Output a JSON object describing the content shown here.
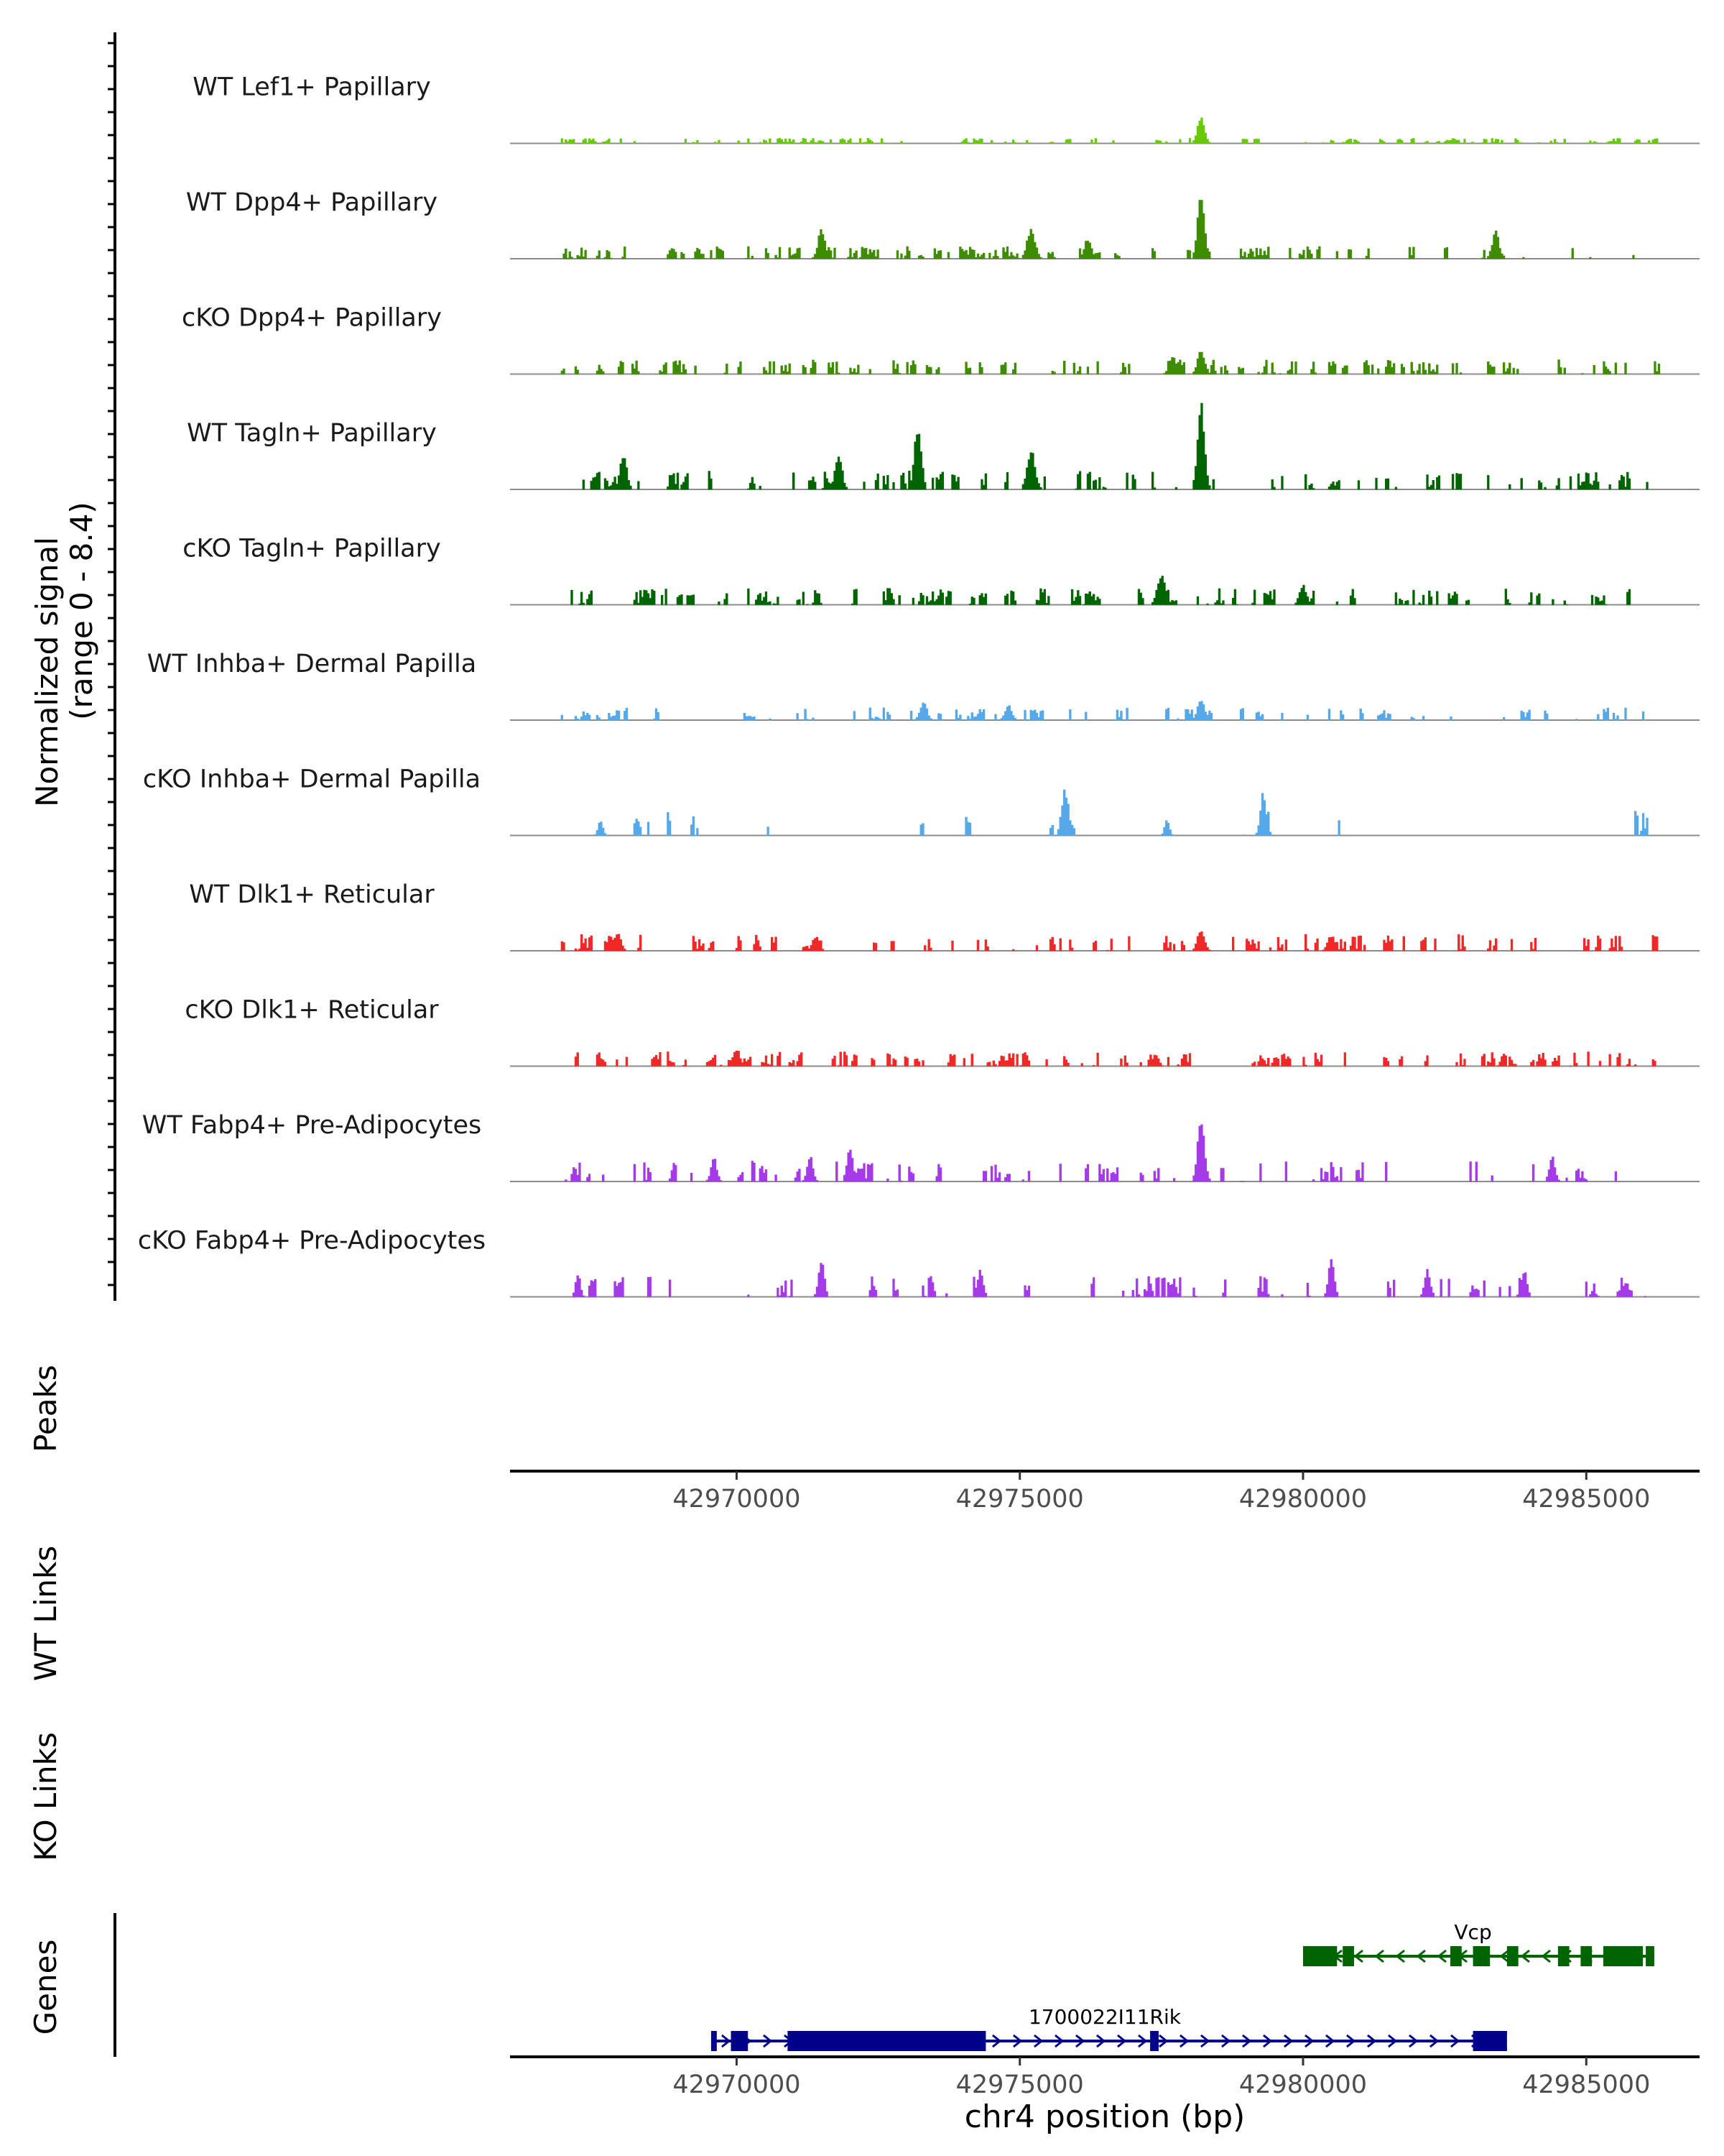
{
  "chart_data": {
    "type": "area",
    "subtype": "coverage-plot",
    "region": {
      "chrom": "chr4",
      "start": 42966000,
      "end": 42987000
    },
    "y_axis": {
      "label_line1": "Normalized signal",
      "label_line2": "(range 0 - 8.4)",
      "ylim": [
        0,
        8.4
      ]
    },
    "tracks": [
      {
        "name": "WT Lef1+ Papillary",
        "color": "#66CC00",
        "density": 0.9,
        "base": 0.25,
        "peaks": [
          [
            42978200,
            2.3,
            60
          ]
        ]
      },
      {
        "name": "WT Dpp4+ Papillary",
        "color": "#3E8C00",
        "density": 0.45,
        "base": 0.6,
        "peaks": [
          [
            42978200,
            5.5,
            60
          ],
          [
            42975200,
            2.5,
            70
          ],
          [
            42971500,
            2.4,
            60
          ],
          [
            42983400,
            2.2,
            60
          ],
          [
            42976200,
            1.6,
            60
          ]
        ]
      },
      {
        "name": "cKO Dpp4+ Papillary",
        "color": "#3E8C00",
        "density": 0.8,
        "base": 0.7,
        "peaks": [
          [
            42978200,
            2.0,
            60
          ],
          [
            42977700,
            1.4,
            60
          ]
        ]
      },
      {
        "name": "WT Tagln+ Papillary",
        "color": "#006400",
        "density": 0.5,
        "base": 0.9,
        "peaks": [
          [
            42978200,
            7.0,
            60
          ],
          [
            42973200,
            5.3,
            60
          ],
          [
            42975200,
            3.2,
            70
          ],
          [
            42971800,
            3.0,
            60
          ],
          [
            42968000,
            3.0,
            60
          ]
        ]
      },
      {
        "name": "cKO Tagln+ Papillary",
        "color": "#006400",
        "density": 0.55,
        "base": 0.8,
        "peaks": [
          [
            42977500,
            2.5,
            70
          ],
          [
            42980000,
            1.6,
            60
          ],
          [
            42968400,
            1.2,
            60
          ]
        ]
      },
      {
        "name": "WT Inhba+ Dermal Papilla",
        "color": "#56A8E8",
        "density": 0.5,
        "base": 0.6,
        "peaks": [
          [
            42978200,
            1.7,
            60
          ],
          [
            42973300,
            1.5,
            60
          ],
          [
            42974800,
            1.2,
            60
          ]
        ]
      },
      {
        "name": "cKO Inhba+ Dermal Papilla",
        "color": "#56A8E8",
        "density": 0.12,
        "base": 1.2,
        "peaks": [
          [
            42975800,
            3.8,
            60
          ],
          [
            42979300,
            3.5,
            50
          ],
          [
            42967600,
            1.2,
            40
          ],
          [
            42977600,
            1.3,
            40
          ]
        ]
      },
      {
        "name": "WT Dlk1+ Reticular",
        "color": "#F02828",
        "density": 0.55,
        "base": 0.8,
        "peaks": [
          [
            42978200,
            1.8,
            60
          ],
          [
            42967900,
            1.5,
            60
          ],
          [
            42971400,
            1.2,
            60
          ],
          [
            42980500,
            1.3,
            60
          ]
        ]
      },
      {
        "name": "cKO Dlk1+ Reticular",
        "color": "#F02828",
        "density": 0.75,
        "base": 0.7,
        "peaks": [
          [
            42970000,
            1.4,
            60
          ],
          [
            42977400,
            1.0,
            50
          ]
        ]
      },
      {
        "name": "WT Fabp4+ Pre-Adipocytes",
        "color": "#A53AE8",
        "density": 0.35,
        "base": 1.0,
        "peaks": [
          [
            42978200,
            5.0,
            60
          ],
          [
            42972000,
            3.0,
            50
          ],
          [
            42971300,
            2.0,
            50
          ],
          [
            42969600,
            2.0,
            50
          ],
          [
            42984400,
            2.0,
            50
          ]
        ]
      },
      {
        "name": "cKO Fabp4+ Pre-Adipocytes",
        "color": "#A53AE8",
        "density": 0.35,
        "base": 1.0,
        "peaks": [
          [
            42971500,
            3.0,
            50
          ],
          [
            42980500,
            3.0,
            50
          ],
          [
            42974300,
            2.2,
            50
          ],
          [
            42982200,
            2.2,
            50
          ],
          [
            42967200,
            2.0,
            40
          ],
          [
            42983900,
            2.2,
            50
          ]
        ]
      }
    ],
    "panels": {
      "peaks": "Peaks",
      "wt_links": "WT Links",
      "ko_links": "KO Links",
      "genes": "Genes"
    },
    "ticks": [
      {
        "value": 42970000,
        "label": "42970000"
      },
      {
        "value": 42975000,
        "label": "42975000"
      },
      {
        "value": 42980000,
        "label": "42980000"
      },
      {
        "value": 42985000,
        "label": "42985000"
      }
    ],
    "xlabel": "chr4 position (bp)",
    "genes": [
      {
        "name": "Vcp",
        "strand": "-",
        "color": "#006400",
        "start": 42980000,
        "end": 42986200,
        "label_pos": 42983000,
        "exons": [
          [
            42980000,
            42980600
          ],
          [
            42980700,
            42980900
          ],
          [
            42982600,
            42982800
          ],
          [
            42983000,
            42983300
          ],
          [
            42983600,
            42983800
          ],
          [
            42984500,
            42984700
          ],
          [
            42984900,
            42985100
          ],
          [
            42985300,
            42986000
          ],
          [
            42986050,
            42986200
          ]
        ],
        "row": 0
      },
      {
        "name": "1700022I11Rik",
        "strand": "+",
        "color": "#00008B",
        "start": 42969550,
        "end": 42983600,
        "label_pos": 42976500,
        "exons": [
          [
            42969550,
            42969650
          ],
          [
            42969900,
            42970200
          ],
          [
            42970900,
            42974400
          ],
          [
            42977300,
            42977450
          ],
          [
            42983000,
            42983600
          ]
        ],
        "row": 1
      }
    ]
  }
}
